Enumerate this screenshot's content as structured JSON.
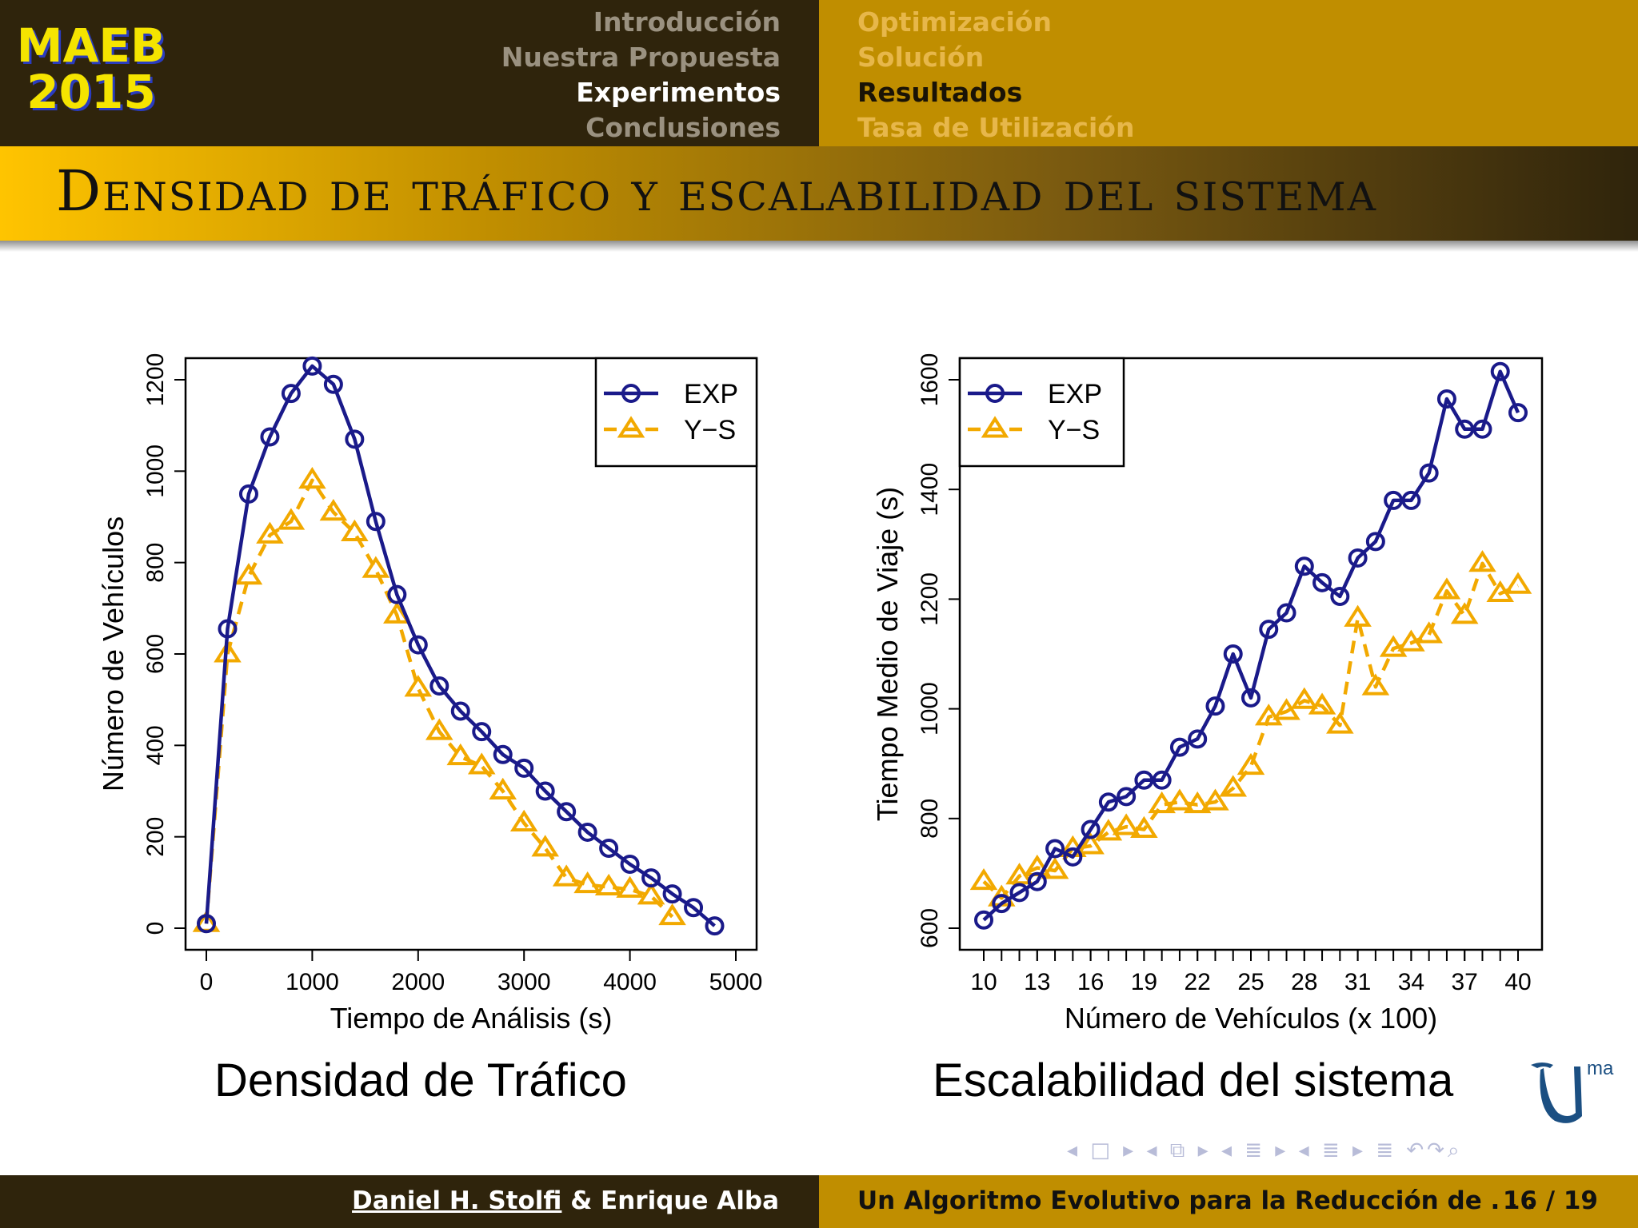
{
  "header": {
    "logo_line1": "MAEB",
    "logo_line2": "2015",
    "sections": [
      "Introducción",
      "Nuestra Propuesta",
      "Experimentos",
      "Conclusiones"
    ],
    "subsections": [
      "Optimización",
      "Solución",
      "Resultados",
      "Tasa de Utilización"
    ],
    "active_section": "Experimentos",
    "active_subsection": "Resultados"
  },
  "slide_title": "Densidad de tráfico y escalabilidad del sistema",
  "captions": {
    "left": "Densidad de Tráfico",
    "right": "Escalabilidad del sistema"
  },
  "logo": {
    "text": "ma"
  },
  "footer": {
    "author1": "Daniel H. Stolfi",
    "author_sep": " & ",
    "author2": "Enrique Alba",
    "talk_title": "Un Algoritmo Evolutivo para la Reducción de . . .",
    "page": "16 / 19"
  },
  "colors": {
    "exp": "#1a1a8a",
    "ys": "#f2a900",
    "header_dark": "#2f240c",
    "header_gold": "#c08e00",
    "logo_yellow": "#f5e400"
  },
  "chart_data": [
    {
      "type": "line",
      "xlabel": "Tiempo de Análisis (s)",
      "ylabel": "Número de Vehículos",
      "xlim": [
        0,
        5000
      ],
      "ylim": [
        0,
        1200
      ],
      "xticks": [
        0,
        1000,
        2000,
        3000,
        4000,
        5000
      ],
      "yticks": [
        0,
        200,
        400,
        600,
        800,
        1000,
        1200
      ],
      "legend_position": "top-right",
      "series": [
        {
          "name": "EXP",
          "marker": "circle",
          "x": [
            0,
            200,
            400,
            600,
            800,
            1000,
            1200,
            1400,
            1600,
            1800,
            2000,
            2200,
            2400,
            2600,
            2800,
            3000,
            3200,
            3400,
            3600,
            3800,
            4000,
            4200,
            4400,
            4600,
            4800
          ],
          "y": [
            10,
            655,
            950,
            1075,
            1170,
            1230,
            1190,
            1070,
            890,
            730,
            620,
            530,
            475,
            430,
            380,
            350,
            300,
            255,
            210,
            175,
            140,
            110,
            75,
            45,
            5
          ]
        },
        {
          "name": "Y-S",
          "marker": "triangle",
          "x": [
            0,
            200,
            400,
            600,
            800,
            1000,
            1200,
            1400,
            1600,
            1800,
            2000,
            2200,
            2400,
            2600,
            2800,
            3000,
            3200,
            3400,
            3600,
            3800,
            4000,
            4200,
            4400
          ],
          "y": [
            10,
            600,
            770,
            860,
            890,
            980,
            910,
            865,
            785,
            685,
            525,
            430,
            375,
            355,
            300,
            230,
            175,
            110,
            95,
            90,
            85,
            70,
            25
          ]
        }
      ]
    },
    {
      "type": "line",
      "xlabel": "Número de Vehículos (x 100)",
      "ylabel": "Tiempo Medio de Viaje (s)",
      "xlim": [
        10,
        40
      ],
      "ylim": [
        600,
        1600
      ],
      "xticks": [
        10,
        13,
        16,
        19,
        22,
        25,
        28,
        31,
        34,
        37,
        40
      ],
      "yticks": [
        600,
        800,
        1000,
        1200,
        1400,
        1600
      ],
      "legend_position": "top-left",
      "series": [
        {
          "name": "EXP",
          "marker": "circle",
          "x": [
            10,
            11,
            12,
            13,
            14,
            15,
            16,
            17,
            18,
            19,
            20,
            21,
            22,
            23,
            24,
            25,
            26,
            27,
            28,
            29,
            30,
            31,
            32,
            33,
            34,
            35,
            36,
            37,
            38,
            39,
            40
          ],
          "y": [
            615,
            645,
            665,
            685,
            745,
            730,
            780,
            830,
            840,
            870,
            870,
            930,
            945,
            1005,
            1100,
            1020,
            1145,
            1175,
            1260,
            1230,
            1205,
            1275,
            1305,
            1380,
            1380,
            1430,
            1565,
            1510,
            1510,
            1615,
            1540
          ]
        },
        {
          "name": "Y-S",
          "marker": "triangle",
          "x": [
            10,
            11,
            12,
            13,
            14,
            15,
            16,
            17,
            18,
            19,
            20,
            21,
            22,
            23,
            24,
            25,
            26,
            27,
            28,
            29,
            30,
            31,
            32,
            33,
            34,
            35,
            36,
            37,
            38,
            39,
            40
          ],
          "y": [
            685,
            655,
            695,
            710,
            705,
            745,
            750,
            775,
            785,
            780,
            825,
            830,
            825,
            830,
            855,
            895,
            985,
            995,
            1015,
            1005,
            970,
            1165,
            1040,
            1110,
            1120,
            1135,
            1215,
            1170,
            1265,
            1210,
            1225
          ]
        }
      ]
    }
  ]
}
